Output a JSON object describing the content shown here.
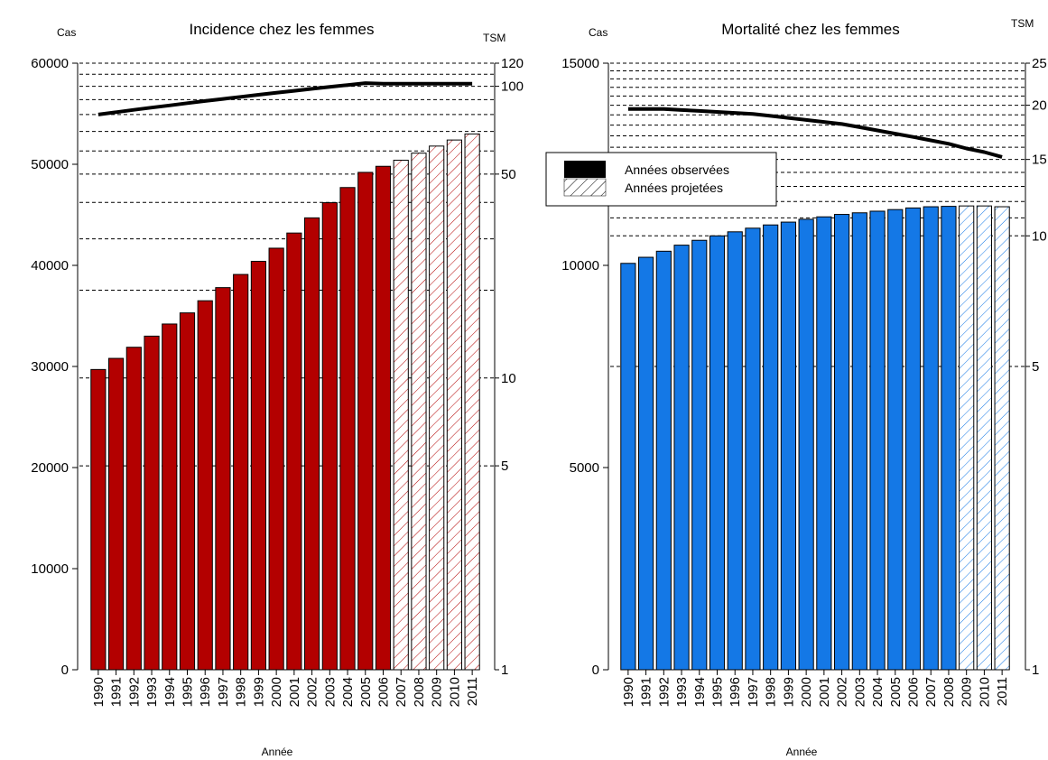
{
  "colors": {
    "incidence_bar": "#B30000",
    "mortality_bar": "#1478E6",
    "line": "#000000",
    "projected_fill": "#FFFFFF"
  },
  "legend": {
    "observed": "Années observées",
    "projected": "Années projetées"
  },
  "chart_data": [
    {
      "type": "bar",
      "title": "Incidence chez les femmes",
      "ylabel_left": "Cas",
      "ylabel_right": "TSM",
      "xlabel": "Année",
      "ylim": [
        0,
        60000
      ],
      "yticks": [
        0,
        10000,
        20000,
        30000,
        40000,
        50000,
        60000
      ],
      "right_scale": "log",
      "right_lim": [
        1,
        120
      ],
      "right_ticks": [
        1,
        5,
        10,
        50,
        100,
        120
      ],
      "right_gridlines": [
        5,
        10,
        20,
        30,
        40,
        50,
        60,
        70,
        80,
        90,
        100,
        110,
        120
      ],
      "categories": [
        "1990",
        "1991",
        "1992",
        "1993",
        "1994",
        "1995",
        "1996",
        "1997",
        "1998",
        "1999",
        "2000",
        "2001",
        "2002",
        "2003",
        "2004",
        "2005",
        "2006",
        "2007",
        "2008",
        "2009",
        "2010",
        "2011"
      ],
      "values": [
        29700,
        30800,
        31900,
        33000,
        34200,
        35300,
        36500,
        37800,
        39100,
        40400,
        41700,
        43200,
        44700,
        46200,
        47700,
        49200,
        49800,
        50400,
        51100,
        51800,
        52400,
        53000
      ],
      "projected_from": "2007",
      "tsm_series": {
        "name": "TSM",
        "values": [
          80,
          81.5,
          83,
          84.5,
          86,
          87.5,
          89,
          90.5,
          92,
          93.5,
          95,
          96.5,
          98,
          99.5,
          101,
          102.5,
          102,
          102,
          102,
          102,
          102,
          102
        ]
      }
    },
    {
      "type": "bar",
      "title": "Mortalité chez les femmes",
      "ylabel_left": "Cas",
      "ylabel_right": "TSM",
      "xlabel": "Année",
      "ylim": [
        0,
        15000
      ],
      "yticks": [
        0,
        5000,
        10000,
        15000
      ],
      "right_scale": "log",
      "right_lim": [
        1,
        25
      ],
      "right_ticks": [
        1,
        5,
        10,
        15,
        20,
        25
      ],
      "right_gridlines": [
        5,
        10,
        11,
        12,
        13,
        14,
        15,
        16,
        17,
        18,
        19,
        20,
        21,
        22,
        23,
        24,
        25
      ],
      "categories": [
        "1990",
        "1991",
        "1992",
        "1993",
        "1994",
        "1995",
        "1996",
        "1997",
        "1998",
        "1999",
        "2000",
        "2001",
        "2002",
        "2003",
        "2004",
        "2005",
        "2006",
        "2007",
        "2008",
        "2009",
        "2010",
        "2011"
      ],
      "values": [
        10050,
        10200,
        10350,
        10500,
        10620,
        10730,
        10830,
        10920,
        11000,
        11070,
        11140,
        11200,
        11260,
        11300,
        11340,
        11380,
        11420,
        11450,
        11460,
        11470,
        11470,
        11450
      ],
      "projected_from": "2009",
      "tsm_series": {
        "name": "TSM",
        "values": [
          19.6,
          19.6,
          19.6,
          19.5,
          19.4,
          19.3,
          19.2,
          19.1,
          18.9,
          18.7,
          18.5,
          18.3,
          18.1,
          17.8,
          17.5,
          17.2,
          16.9,
          16.6,
          16.3,
          15.9,
          15.6,
          15.2
        ]
      }
    }
  ]
}
